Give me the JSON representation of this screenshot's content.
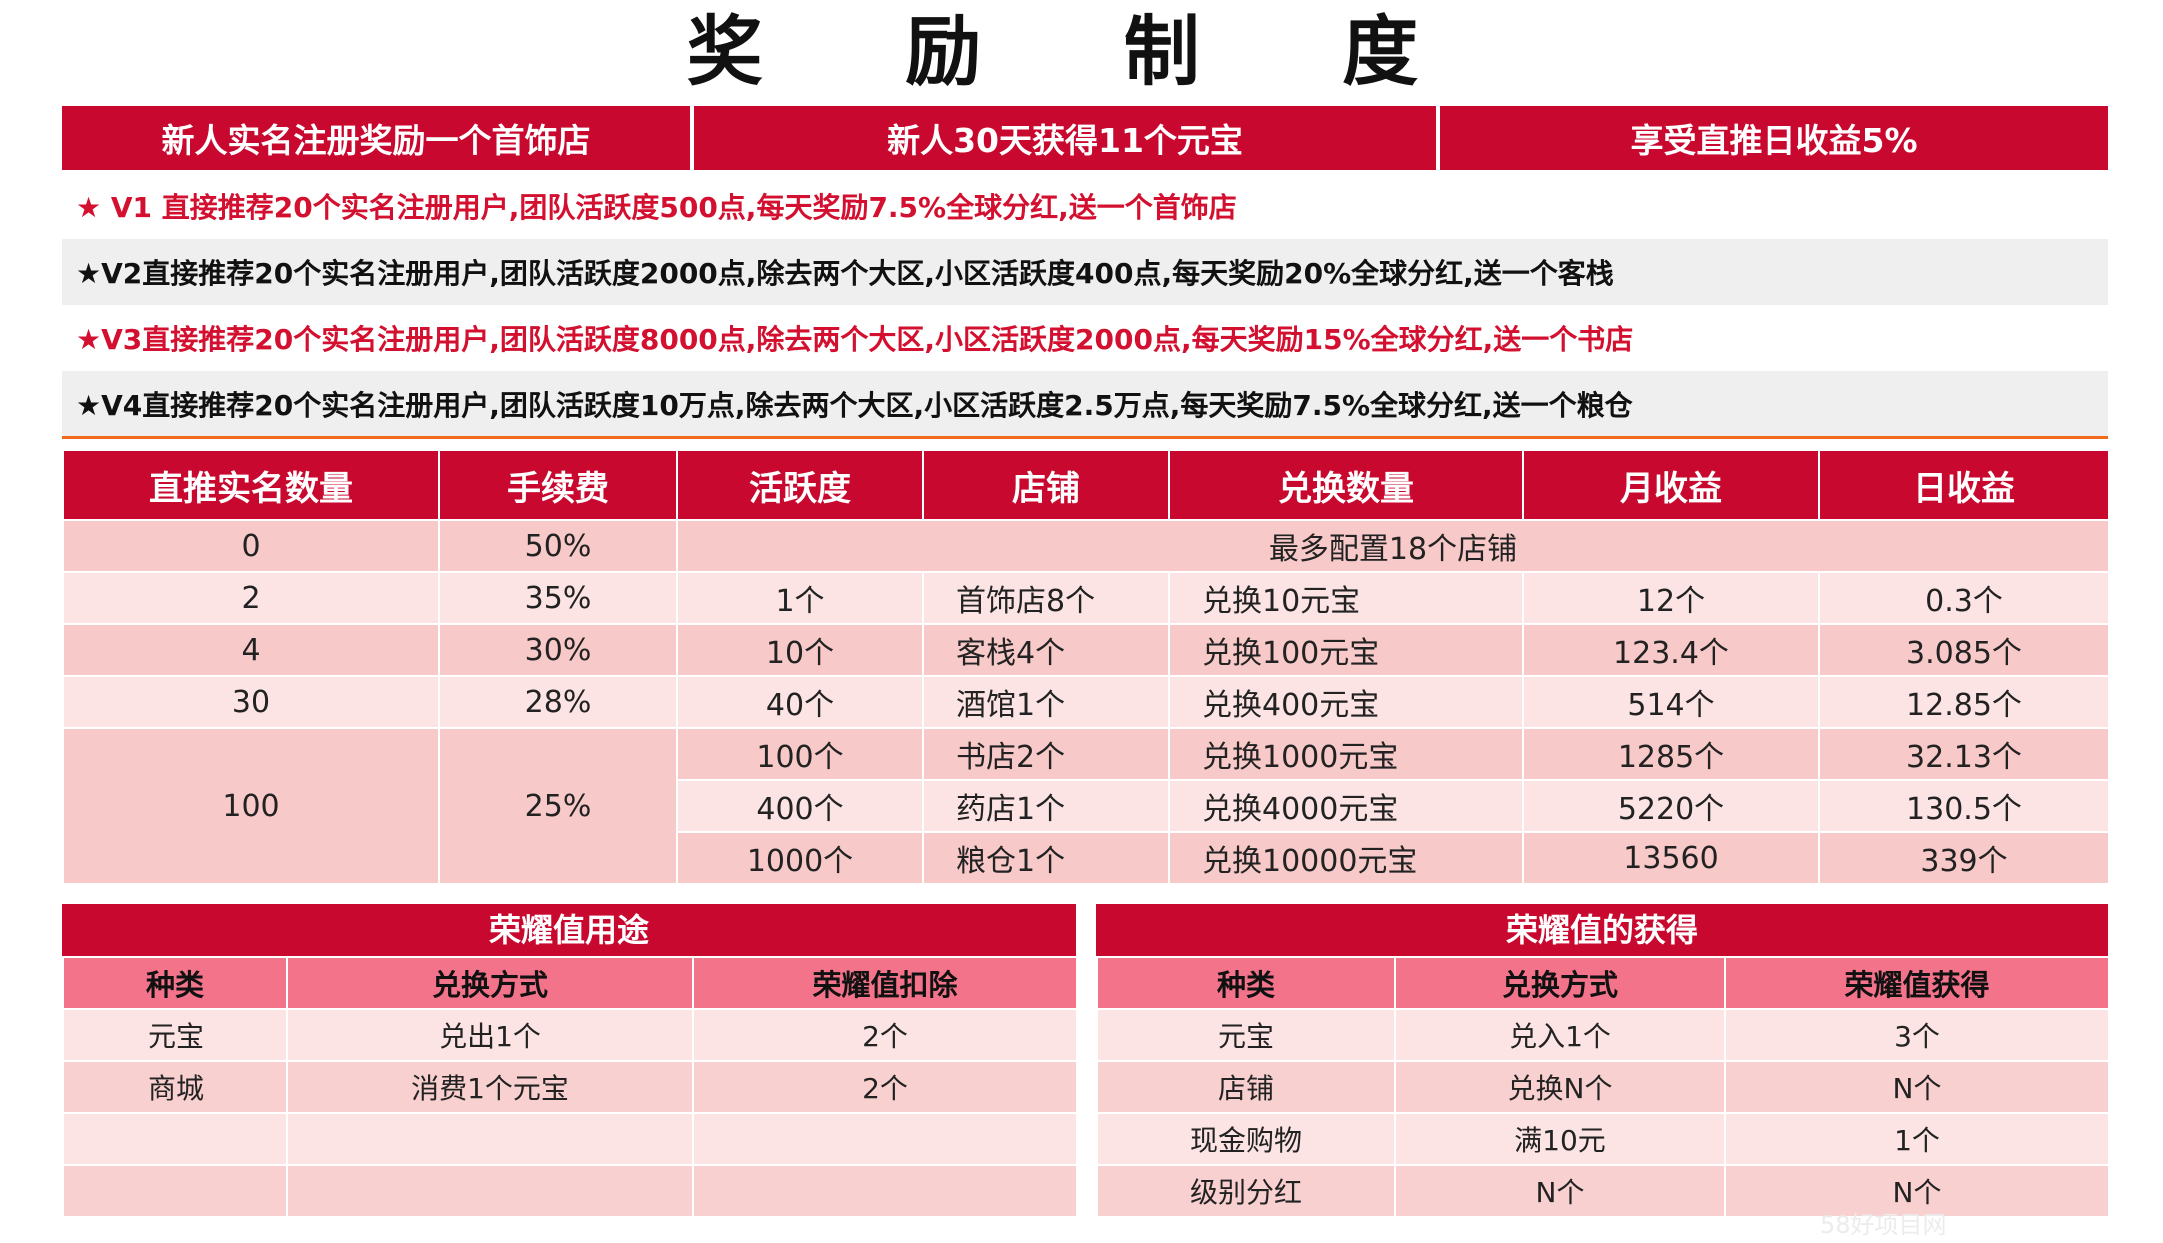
{
  "title": "奖 励 制 度",
  "banner": [
    "新人实名注册奖励一个首饰店",
    "新人30天获得11个元宝",
    "享受直推日收益5%"
  ],
  "levels": [
    "★ V1 直接推荐20个实名注册用户,团队活跃度500点,每天奖励7.5%全球分红,送一个首饰店",
    "★V2直接推荐20个实名注册用户,团队活跃度2000点,除去两个大区,小区活跃度400点,每天奖励20%全球分红,送一个客栈",
    "★V3直接推荐20个实名注册用户,团队活跃度8000点,除去两个大区,小区活跃度2000点,每天奖励15%全球分红,送一个书店",
    "★V4直接推荐20个实名注册用户,团队活跃度10万点,除去两个大区,小区活跃度2.5万点,每天奖励7.5%全球分红,送一个粮仓"
  ],
  "main_table": {
    "headers": [
      "直推实名数量",
      "手续费",
      "活跃度",
      "店铺",
      "兑换数量",
      "月收益",
      "日收益"
    ],
    "row0": {
      "count": "0",
      "fee": "50%",
      "note": "最多配置18个店铺"
    },
    "rows": [
      [
        "2",
        "35%",
        "1个",
        "首饰店8个",
        "兑换10元宝",
        "12个",
        "0.3个"
      ],
      [
        "4",
        "30%",
        "10个",
        "客栈4个",
        "兑换100元宝",
        "123.4个",
        "3.085个"
      ],
      [
        "30",
        "28%",
        "40个",
        "酒馆1个",
        "兑换400元宝",
        "514个",
        "12.85个"
      ]
    ],
    "group100": {
      "count": "100",
      "fee": "25%",
      "rows": [
        [
          "100个",
          "书店2个",
          "兑换1000元宝",
          "1285个",
          "32.13个"
        ],
        [
          "400个",
          "药店1个",
          "兑换4000元宝",
          "5220个",
          "130.5个"
        ],
        [
          "1000个",
          "粮仓1个",
          "兑换10000元宝",
          "13560",
          "339个"
        ]
      ]
    }
  },
  "use_table": {
    "title": "荣耀值用途",
    "headers": [
      "种类",
      "兑换方式",
      "荣耀值扣除"
    ],
    "rows": [
      [
        "元宝",
        "兑出1个",
        "2个"
      ],
      [
        "商城",
        "消费1个元宝",
        "2个"
      ],
      [
        "",
        "",
        ""
      ],
      [
        "",
        "",
        ""
      ]
    ]
  },
  "gain_table": {
    "title": "荣耀值的获得",
    "headers": [
      "种类",
      "兑换方式",
      "荣耀值获得"
    ],
    "rows": [
      [
        "元宝",
        "兑入1个",
        "3个"
      ],
      [
        "店铺",
        "兑换N个",
        "N个"
      ],
      [
        "现金购物",
        "满10元",
        "1个"
      ],
      [
        "级别分红",
        "N个",
        "N个"
      ]
    ]
  },
  "watermark": "58好项目网"
}
